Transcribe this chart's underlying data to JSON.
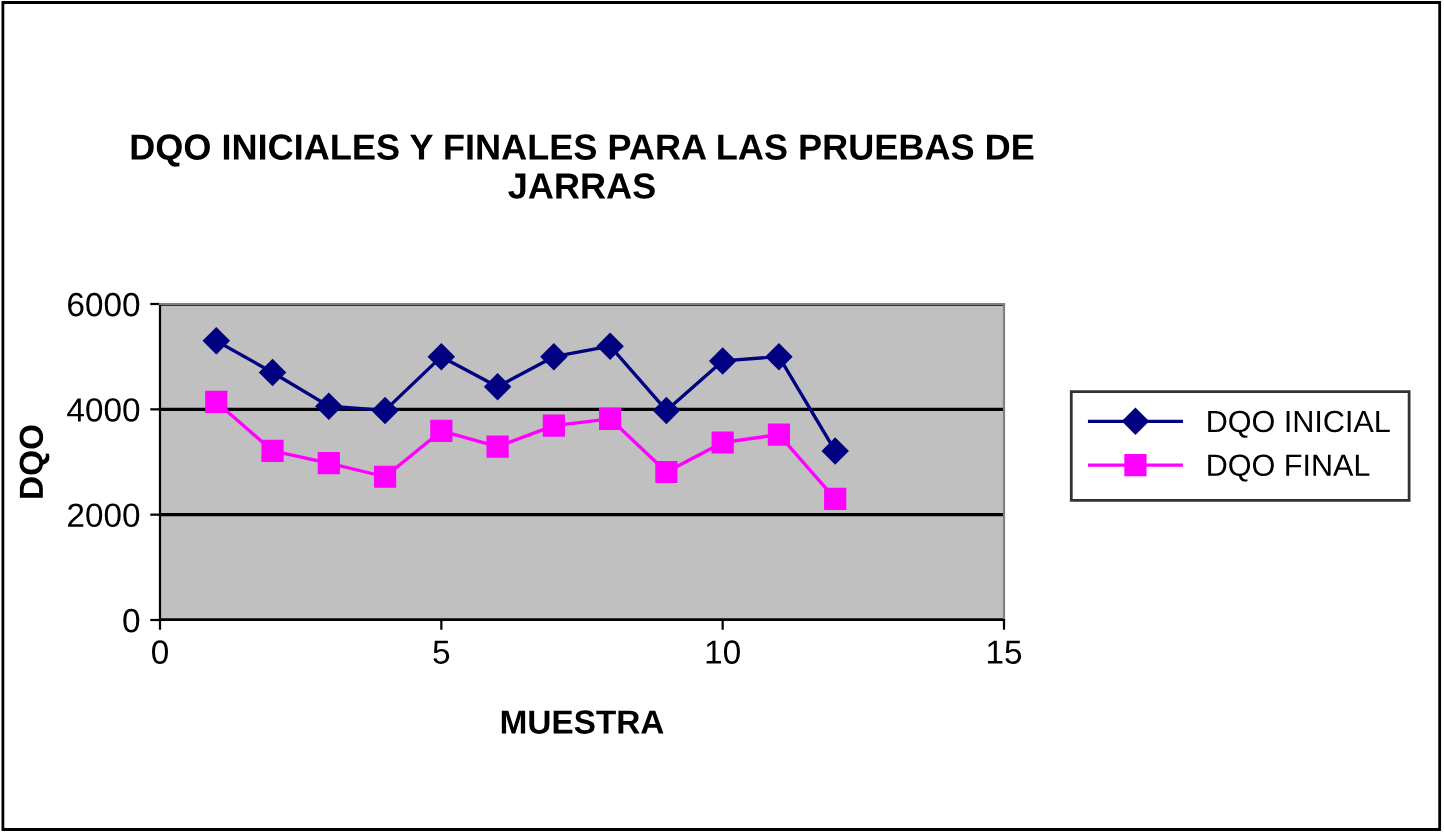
{
  "chart_data": {
    "type": "line",
    "title": "DQO INICIALES Y FINALES PARA LAS PRUEBAS DE\nJARRAS",
    "xlabel": "MUESTRA",
    "ylabel": "DQO",
    "x": [
      1,
      2,
      3,
      4,
      5,
      6,
      7,
      8,
      9,
      10,
      11,
      12
    ],
    "series": [
      {
        "name": "DQO INICIAL",
        "color": "#000080",
        "marker": "diamond",
        "values": [
          5300,
          4700,
          4060,
          3980,
          5000,
          4430,
          5000,
          5200,
          3980,
          4920,
          5000,
          3210
        ]
      },
      {
        "name": "DQO FINAL",
        "color": "#ff00ff",
        "marker": "square",
        "values": [
          4140,
          3210,
          2980,
          2720,
          3590,
          3290,
          3690,
          3820,
          2810,
          3370,
          3520,
          2300
        ]
      }
    ],
    "xlim": [
      0,
      15
    ],
    "xticks": [
      0,
      5,
      10,
      15
    ],
    "ylim": [
      0,
      6000
    ],
    "yticks": [
      0,
      2000,
      4000,
      6000
    ],
    "grid": "y",
    "legend": "right",
    "line_style": "solid"
  }
}
